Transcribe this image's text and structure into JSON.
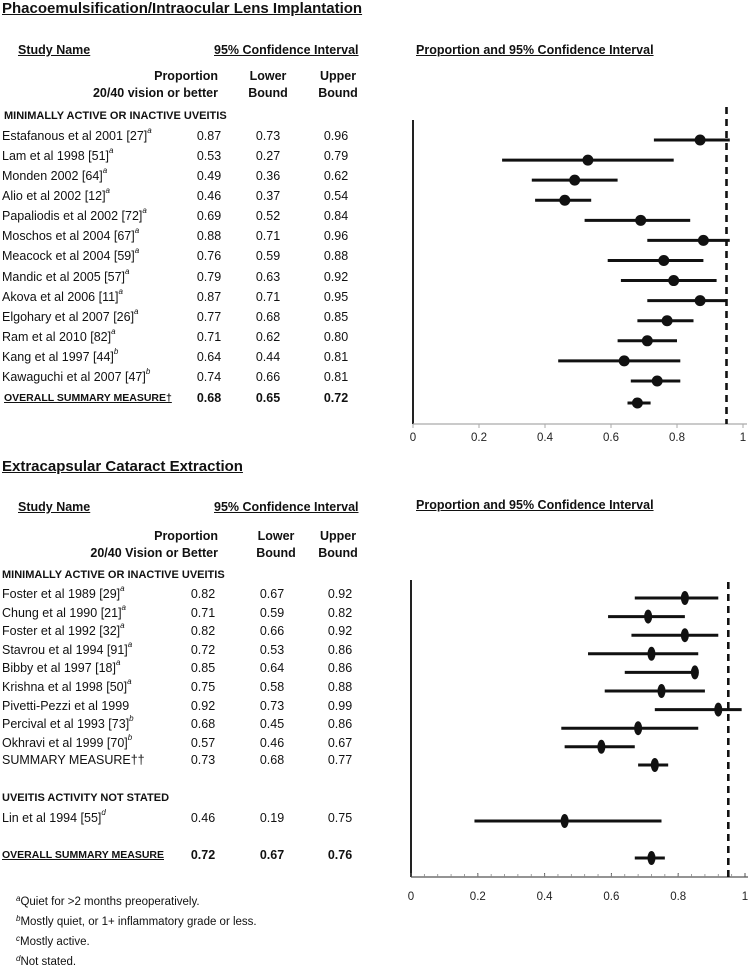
{
  "chart_data": [
    {
      "type": "forest",
      "title": "Phacoemulsification/Intraocular Lens Implantation",
      "table_headers": {
        "study": "Study Name",
        "ci": "95% Confidence Interval",
        "plot": "Proportion and 95% Confidence Interval",
        "proportion_line1": "Proportion",
        "proportion_line2": "20/40 vision or better",
        "lower_line1": "Lower",
        "lower_line2": "Bound",
        "upper_line1": "Upper",
        "upper_line2": "Bound"
      },
      "sections": [
        {
          "label": "MINIMALLY ACTIVE OR INACTIVE UVEITIS",
          "rows": [
            {
              "name": "Estafanous et al 2001 [27]",
              "sup": "a",
              "prop": "0.87",
              "lower": "0.73",
              "upper": "0.96"
            },
            {
              "name": "Lam et al 1998 [51]",
              "sup": "a",
              "prop": "0.53",
              "lower": "0.27",
              "upper": "0.79"
            },
            {
              "name": "Monden 2002 [64]",
              "sup": "a",
              "prop": "0.49",
              "lower": "0.36",
              "upper": "0.62"
            },
            {
              "name": "Alio et al 2002 [12]",
              "sup": "a",
              "prop": "0.46",
              "lower": "0.37",
              "upper": "0.54"
            },
            {
              "name": "Papaliodis et al 2002 [72]",
              "sup": "a",
              "prop": "0.69",
              "lower": "0.52",
              "upper": "0.84"
            },
            {
              "name": "Moschos et al 2004 [67]",
              "sup": "a",
              "prop": "0.88",
              "lower": "0.71",
              "upper": "0.96"
            },
            {
              "name": "Meacock et al 2004 [59]",
              "sup": "a",
              "prop": "0.76",
              "lower": "0.59",
              "upper": "0.88"
            },
            {
              "name": "Mandic et al 2005 [57]",
              "sup": "a",
              "prop": "0.79",
              "lower": "0.63",
              "upper": "0.92"
            },
            {
              "name": "Akova et al 2006 [11]",
              "sup": "a",
              "prop": "0.87",
              "lower": "0.71",
              "upper": "0.95"
            },
            {
              "name": "Elgohary et al 2007 [26]",
              "sup": "a",
              "prop": "0.77",
              "lower": "0.68",
              "upper": "0.85"
            },
            {
              "name": "Ram et al 2010 [82]",
              "sup": "a",
              "prop": "0.71",
              "lower": "0.62",
              "upper": "0.80"
            },
            {
              "name": "Kang et al 1997 [44]",
              "sup": "b",
              "prop": "0.64",
              "lower": "0.44",
              "upper": "0.81"
            },
            {
              "name": "Kawaguchi et al 2007 [47]",
              "sup": "b",
              "prop": "0.74",
              "lower": "0.66",
              "upper": "0.81"
            }
          ]
        }
      ],
      "overall": {
        "name": "OVERALL SUMMARY MEASURE†",
        "prop": "0.68",
        "lower": "0.65",
        "upper": "0.72"
      },
      "xlim": [
        0,
        1
      ],
      "xticks": [
        "0",
        "0.2",
        "0.4",
        "0.6",
        "0.8",
        "1"
      ],
      "reference_line": 0.95,
      "marker": "circle"
    },
    {
      "type": "forest",
      "title": "Extracapsular Cataract Extraction",
      "table_headers": {
        "study": "Study Name",
        "ci": "95% Confidence Interval",
        "plot": "Proportion and 95% Confidence Interval",
        "proportion_line1": "Proportion",
        "proportion_line2": "20/40 Vision or Better",
        "lower_line1": "Lower",
        "lower_line2": "Bound",
        "upper_line1": "Upper",
        "upper_line2": "Bound"
      },
      "sections": [
        {
          "label": "MINIMALLY ACTIVE OR INACTIVE UVEITIS",
          "rows": [
            {
              "name": "Foster et al 1989 [29]",
              "sup": "a",
              "prop": "0.82",
              "lower": "0.67",
              "upper": "0.92"
            },
            {
              "name": "Chung et al 1990 [21]",
              "sup": "a",
              "prop": "0.71",
              "lower": "0.59",
              "upper": "0.82"
            },
            {
              "name": "Foster et al 1992 [32]",
              "sup": "a",
              "prop": "0.82",
              "lower": "0.66",
              "upper": "0.92"
            },
            {
              "name": "Stavrou et al 1994 [91]",
              "sup": "a",
              "prop": "0.72",
              "lower": "0.53",
              "upper": "0.86"
            },
            {
              "name": "Bibby et al 1997 [18]",
              "sup": "a",
              "prop": "0.85",
              "lower": "0.64",
              "upper": "0.86"
            },
            {
              "name": "Krishna et al 1998 [50]",
              "sup": "a",
              "prop": "0.75",
              "lower": "0.58",
              "upper": "0.88"
            },
            {
              "name": "Pivetti-Pezzi et al 1999",
              "sup": "",
              "prop": "0.92",
              "lower": "0.73",
              "upper": "0.99"
            },
            {
              "name": "Percival et al 1993 [73]",
              "sup": "b",
              "prop": "0.68",
              "lower": "0.45",
              "upper": "0.86"
            },
            {
              "name": "Okhravi et al 1999 [70]",
              "sup": "b",
              "prop": "0.57",
              "lower": "0.46",
              "upper": "0.67"
            }
          ],
          "summary": {
            "name": "SUMMARY MEASURE††",
            "prop": "0.73",
            "lower": "0.68",
            "upper": "0.77"
          }
        },
        {
          "label": "UVEITIS ACTIVITY NOT STATED",
          "rows": [
            {
              "name": "Lin et al 1994 [55]",
              "sup": "d",
              "prop": "0.46",
              "lower": "0.19",
              "upper": "0.75"
            }
          ]
        }
      ],
      "overall": {
        "name": "OVERALL SUMMARY MEASURE",
        "prop": "0.72",
        "lower": "0.67",
        "upper": "0.76"
      },
      "xlim": [
        0,
        1
      ],
      "xticks": [
        "0",
        "0.2",
        "0.4",
        "0.6",
        "0.8",
        "1"
      ],
      "minor_tick_step": 0.04,
      "reference_line": 0.95,
      "marker": "vertical-ellipse"
    }
  ],
  "footnotes": [
    {
      "mark": "a",
      "text": "Quiet for >2 months preoperatively."
    },
    {
      "mark": "b",
      "text": "Mostly quiet, or 1+ inflammatory grade or less."
    },
    {
      "mark": "c",
      "text": "Mostly active."
    },
    {
      "mark": "d",
      "text": "Not stated."
    }
  ]
}
